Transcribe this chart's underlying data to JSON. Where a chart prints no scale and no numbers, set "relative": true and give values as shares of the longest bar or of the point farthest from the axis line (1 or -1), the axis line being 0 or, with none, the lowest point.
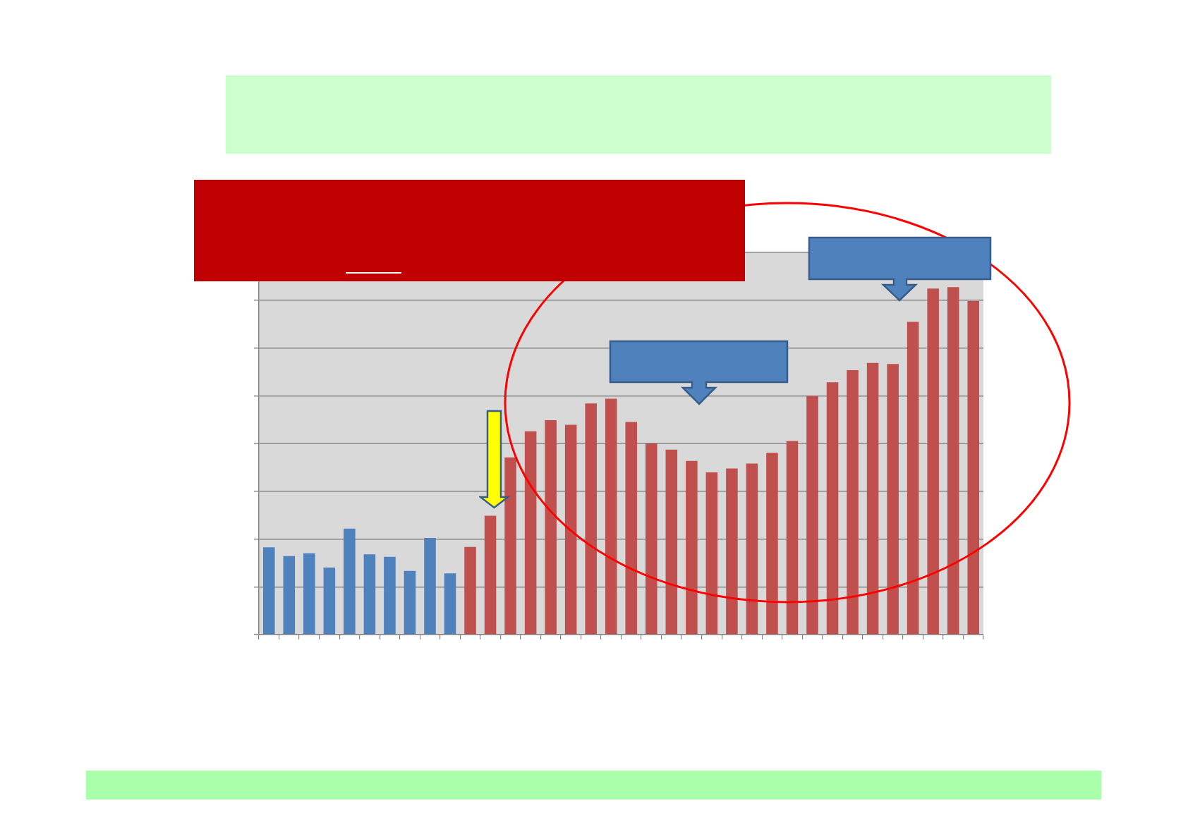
{
  "chart_data": {
    "type": "bar",
    "categories": [
      null,
      null,
      null,
      null,
      null,
      null,
      null,
      null,
      null,
      null,
      null,
      null,
      null,
      null,
      null,
      null,
      null,
      null,
      null,
      null,
      null,
      null,
      null,
      null,
      null,
      null,
      null,
      null,
      null,
      null,
      null,
      null,
      null,
      null,
      null,
      null
    ],
    "values": [
      0.251,
      0.226,
      0.234,
      0.193,
      0.305,
      0.231,
      0.224,
      0.183,
      0.278,
      0.176,
      0.252,
      0.342,
      0.51,
      0.585,
      0.617,
      0.604,
      0.665,
      0.679,
      0.612,
      0.55,
      0.532,
      0.5,
      0.467,
      0.478,
      0.492,
      0.523,
      0.557,
      0.687,
      0.726,
      0.761,
      0.782,
      0.779,
      0.9,
      0.996,
      1,
      0.96
    ],
    "colors": [
      "#4f81bd",
      "#4f81bd",
      "#4f81bd",
      "#4f81bd",
      "#4f81bd",
      "#4f81bd",
      "#4f81bd",
      "#4f81bd",
      "#4f81bd",
      "#4f81bd",
      "#c0504d",
      "#c0504d",
      "#c0504d",
      "#c0504d",
      "#c0504d",
      "#c0504d",
      "#c0504d",
      "#c0504d",
      "#c0504d",
      "#c0504d",
      "#c0504d",
      "#c0504d",
      "#c0504d",
      "#c0504d",
      "#c0504d",
      "#c0504d",
      "#c0504d",
      "#c0504d",
      "#c0504d",
      "#c0504d",
      "#c0504d",
      "#c0504d",
      "#c0504d",
      "#c0504d",
      "#c0504d",
      "#c0504d"
    ],
    "relative": true,
    "grid": "y"
  }
}
